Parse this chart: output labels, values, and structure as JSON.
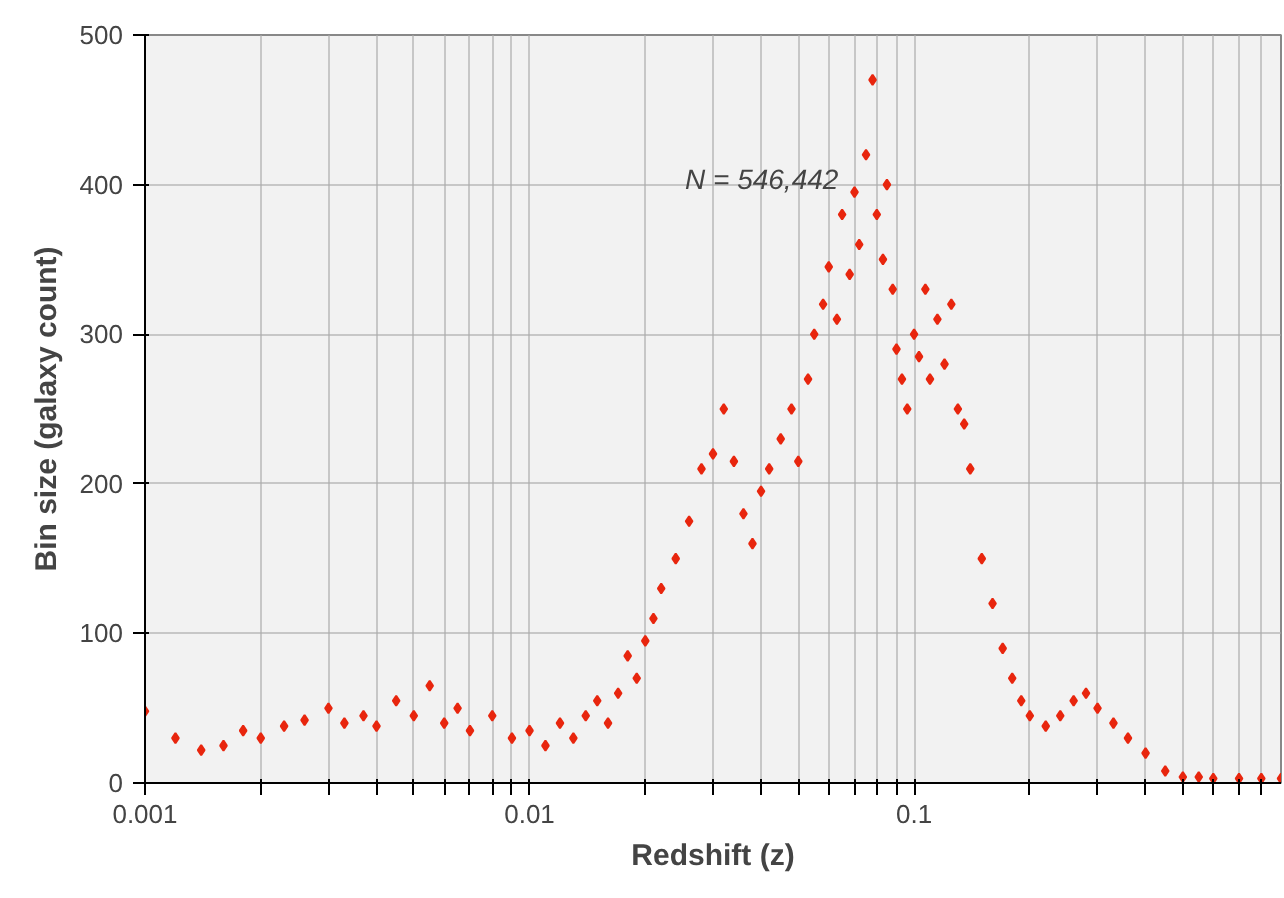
{
  "chart_data": {
    "type": "scatter",
    "xlabel": "Redshift (z)",
    "ylabel": "Bin size (galaxy count)",
    "log": "x",
    "grid": true,
    "marker": "diamond",
    "xlim": [
      0.001,
      0.9
    ],
    "ylim": [
      0,
      500
    ],
    "xticks": [
      0.001,
      {
        "value": 0.002,
        "label": null
      },
      {
        "value": 0.003,
        "label": null
      },
      {
        "value": 0.004,
        "label": null
      },
      {
        "value": 0.005,
        "label": null
      },
      {
        "value": 0.006,
        "label": null
      },
      {
        "value": 0.007,
        "label": null
      },
      {
        "value": 0.008,
        "label": null
      },
      {
        "value": 0.009,
        "label": null
      },
      0.01,
      {
        "value": 0.02,
        "label": null
      },
      {
        "value": 0.03,
        "label": null
      },
      {
        "value": 0.04,
        "label": null
      },
      {
        "value": 0.05,
        "label": null
      },
      {
        "value": 0.06,
        "label": null
      },
      {
        "value": 0.07,
        "label": null
      },
      {
        "value": 0.08,
        "label": null
      },
      {
        "value": 0.09,
        "label": null
      },
      0.1,
      {
        "value": 0.2,
        "label": null
      },
      {
        "value": 0.3,
        "label": null
      },
      {
        "value": 0.4,
        "label": null
      },
      {
        "value": 0.5,
        "label": null
      },
      {
        "value": 0.6,
        "label": null
      },
      {
        "value": 0.7,
        "label": null
      },
      {
        "value": 0.8,
        "label": null
      }
    ],
    "yticks": [
      0,
      100,
      200,
      300,
      400,
      500
    ],
    "annotations": [
      "N = 546,442"
    ],
    "series": [
      {
        "color": "#e8260e",
        "x": [
          0.001,
          0.0012,
          0.0014,
          0.0016,
          0.0018,
          0.002,
          0.0023,
          0.0026,
          0.003,
          0.0033,
          0.0037,
          0.004,
          0.0045,
          0.005,
          0.0055,
          0.006,
          0.0065,
          0.007,
          0.008,
          0.009,
          0.01,
          0.011,
          0.012,
          0.013,
          0.014,
          0.015,
          0.016,
          0.017,
          0.018,
          0.019,
          0.02,
          0.021,
          0.022,
          0.024,
          0.026,
          0.028,
          0.03,
          0.032,
          0.034,
          0.036,
          0.038,
          0.04,
          0.042,
          0.045,
          0.048,
          0.05,
          0.053,
          0.055,
          0.058,
          0.06,
          0.063,
          0.065,
          0.068,
          0.07,
          0.072,
          0.075,
          0.078,
          0.08,
          0.083,
          0.085,
          0.088,
          0.09,
          0.093,
          0.096,
          0.1,
          0.103,
          0.107,
          0.11,
          0.115,
          0.12,
          0.125,
          0.13,
          0.135,
          0.14,
          0.15,
          0.16,
          0.17,
          0.18,
          0.19,
          0.2,
          0.22,
          0.24,
          0.26,
          0.28,
          0.3,
          0.33,
          0.36,
          0.4,
          0.45,
          0.5,
          0.55,
          0.6,
          0.7,
          0.8,
          0.9
        ],
        "values": [
          48,
          30,
          22,
          25,
          35,
          30,
          38,
          42,
          50,
          40,
          45,
          38,
          55,
          45,
          65,
          40,
          50,
          35,
          45,
          30,
          35,
          25,
          40,
          30,
          45,
          55,
          40,
          60,
          85,
          70,
          95,
          110,
          130,
          150,
          175,
          210,
          220,
          250,
          215,
          180,
          160,
          195,
          210,
          230,
          250,
          215,
          270,
          300,
          320,
          345,
          310,
          380,
          340,
          395,
          360,
          420,
          470,
          380,
          350,
          400,
          330,
          290,
          270,
          250,
          300,
          285,
          330,
          270,
          310,
          280,
          320,
          250,
          240,
          210,
          150,
          120,
          90,
          70,
          55,
          45,
          38,
          45,
          55,
          60,
          50,
          40,
          30,
          20,
          8,
          4,
          4,
          3,
          3,
          3,
          3
        ]
      }
    ]
  }
}
